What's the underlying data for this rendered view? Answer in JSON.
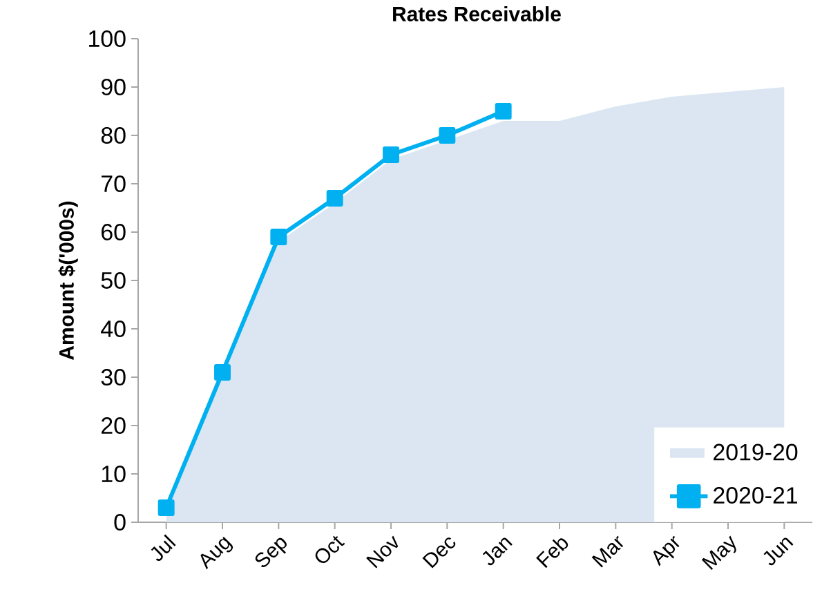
{
  "chart_data": {
    "type": "line",
    "title": "Rates Receivable",
    "ylabel": "Amount $('000s)",
    "categories": [
      "Jul",
      "Aug",
      "Sep",
      "Oct",
      "Nov",
      "Dec",
      "Jan",
      "Feb",
      "Mar",
      "Apr",
      "May",
      "Jun"
    ],
    "ylim": [
      0,
      100
    ],
    "yticks": [
      0,
      10,
      20,
      30,
      40,
      50,
      60,
      70,
      80,
      90,
      100
    ],
    "legend": "bottom right",
    "series": [
      {
        "name": "2019-20",
        "type": "area",
        "color": "#dce6f2",
        "values": [
          2,
          30,
          58,
          66,
          75,
          79,
          83,
          83,
          86,
          88,
          89,
          90
        ]
      },
      {
        "name": "2020-21",
        "color": "#00b0f0",
        "marker": "square",
        "values": [
          3,
          31,
          59,
          67,
          76,
          80,
          85,
          null,
          null,
          null,
          null,
          null
        ]
      }
    ]
  }
}
